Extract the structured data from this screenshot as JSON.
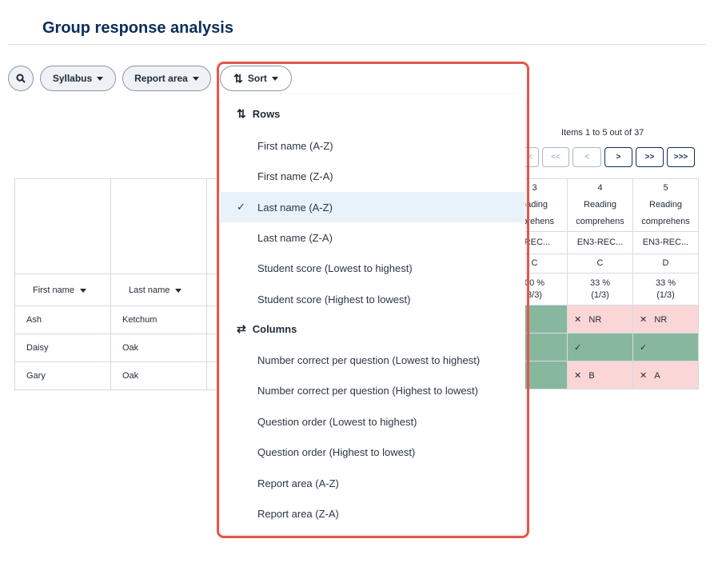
{
  "page": {
    "title": "Group response analysis"
  },
  "toolbar": {
    "syllabus_label": "Syllabus",
    "report_area_label": "Report area",
    "sort_label": "Sort"
  },
  "pager": {
    "summary": "Items 1 to 5 out of 37",
    "buttons": [
      "<",
      "<<",
      "<",
      ">",
      ">>",
      ">>>"
    ]
  },
  "table": {
    "columns": {
      "first_name": "First name",
      "last_name": "Last name"
    },
    "students": [
      {
        "first": "Ash",
        "last": "Ketchum"
      },
      {
        "first": "Daisy",
        "last": "Oak"
      },
      {
        "first": "Gary",
        "last": "Oak"
      }
    ],
    "questions": [
      {
        "number": "3",
        "area": "eading",
        "area2": "mprehens",
        "code": "I-REC...",
        "answer": "C",
        "pct": "00 %",
        "count": "3/3)",
        "cells": [
          "",
          "",
          ""
        ]
      },
      {
        "number": "4",
        "area": "Reading",
        "area2": "comprehens",
        "code": "EN3-REC...",
        "answer": "C",
        "pct": "33 %",
        "count": "(1/3)",
        "cells": [
          "NR",
          "",
          "B"
        ]
      },
      {
        "number": "5",
        "area": "Reading",
        "area2": "comprehens",
        "code": "EN3-REC...",
        "answer": "D",
        "pct": "33 %",
        "count": "(1/3)",
        "cells": [
          "NR",
          "",
          "A"
        ]
      }
    ]
  },
  "sort_menu": {
    "rows_heading": "Rows",
    "rows": [
      "First name (A-Z)",
      "First name (Z-A)",
      "Last name (A-Z)",
      "Last name (Z-A)",
      "Student score (Lowest to highest)",
      "Student score (Highest to lowest)"
    ],
    "selected_row": "Last name (A-Z)",
    "columns_heading": "Columns",
    "columns": [
      "Number correct per question (Lowest to highest)",
      "Number correct per question (Highest to lowest)",
      "Question order (Lowest to highest)",
      "Question order (Highest to lowest)",
      "Report area (A-Z)",
      "Report area (Z-A)"
    ]
  },
  "icons": {
    "search": "search-icon",
    "sort": "sort-arrows-icon",
    "swap": "swap-arrows-icon",
    "check": "check-icon",
    "cross": "cross-icon",
    "caret": "caret-down-icon"
  },
  "colors": {
    "title": "#0b2e5b",
    "correct": "#87b89e",
    "incorrect": "#fad6d6",
    "highlight_border": "#e2574c",
    "selected_bg": "#e8f2fb"
  }
}
